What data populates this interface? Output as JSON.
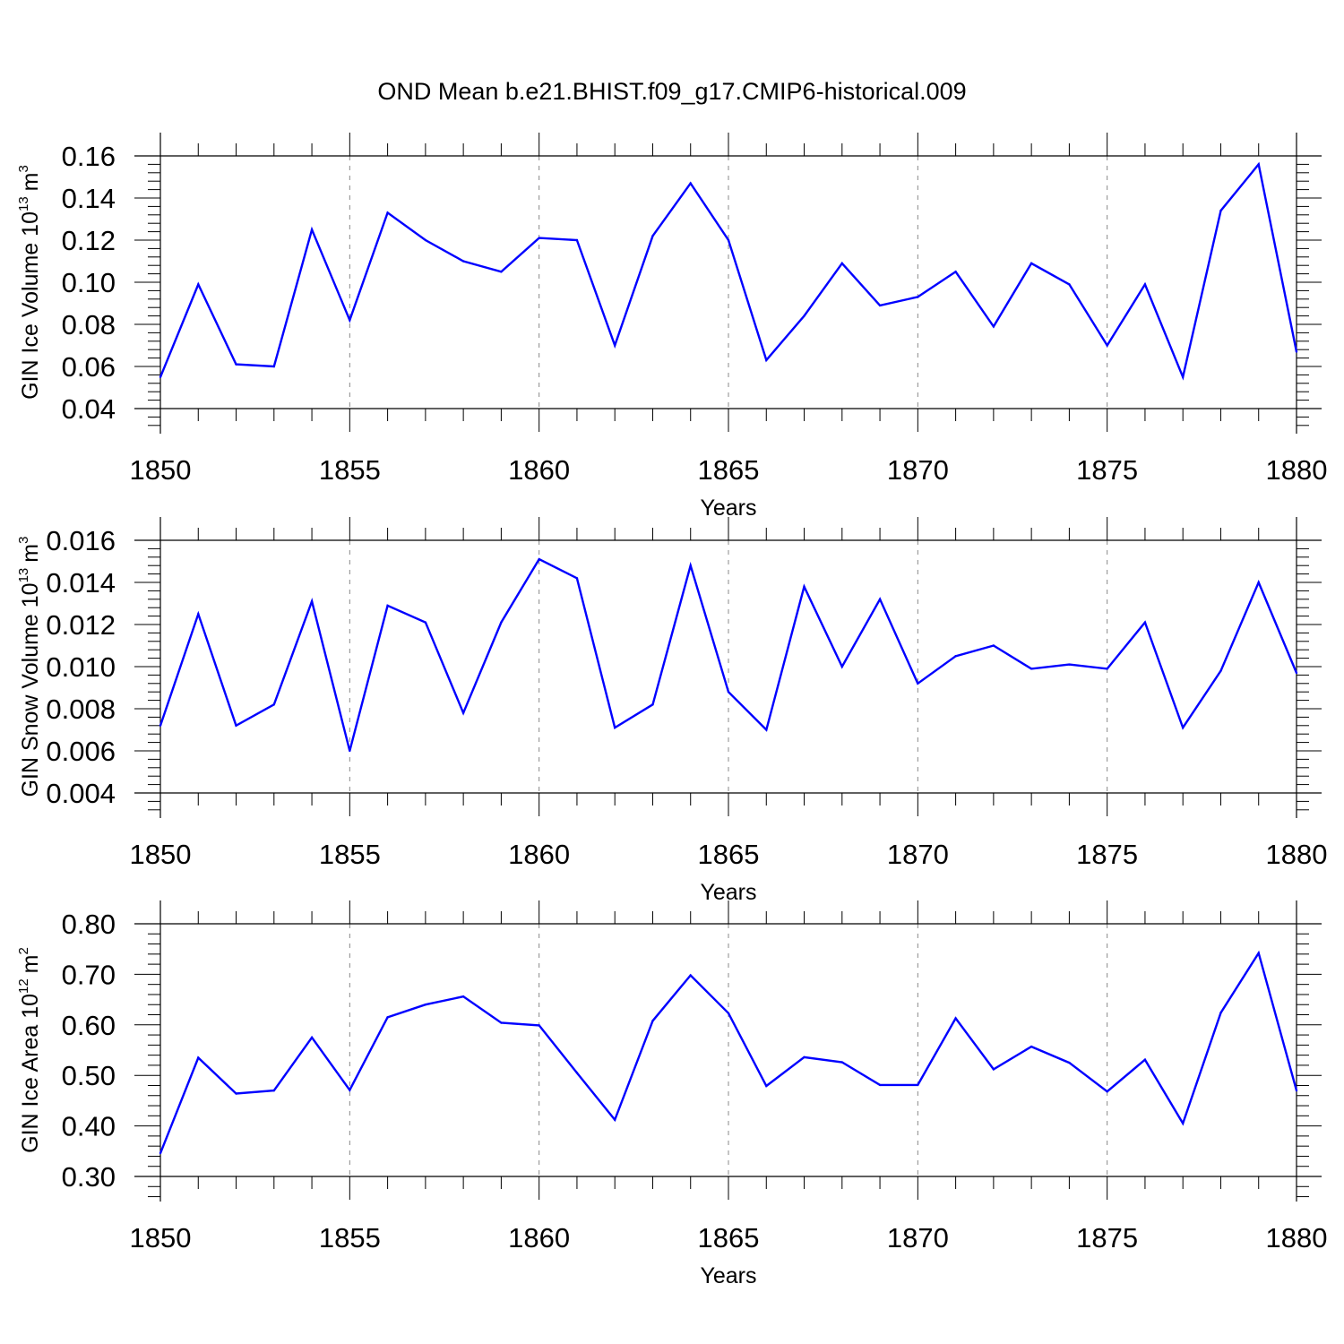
{
  "title": "OND Mean b.e21.BHIST.f09_g17.CMIP6-historical.009",
  "x_axis": {
    "label": "Years",
    "ticks": [
      "1850",
      "1855",
      "1860",
      "1865",
      "1870",
      "1875",
      "1880"
    ]
  },
  "colors": {
    "line": "#0000ff",
    "grid": "#888888",
    "axes": "#000000"
  },
  "panels": [
    {
      "ylabel_main": "GIN Ice Volume 10",
      "ylabel_exp": "13",
      "ylabel_unit": "m",
      "ylabel_unit_exp": "3",
      "yticks": [
        "0.04",
        "0.06",
        "0.08",
        "0.10",
        "0.12",
        "0.14",
        "0.16"
      ]
    },
    {
      "ylabel_main": "GIN Snow Volume 10",
      "ylabel_exp": "13",
      "ylabel_unit": "m",
      "ylabel_unit_exp": "3",
      "yticks": [
        "0.004",
        "0.006",
        "0.008",
        "0.010",
        "0.012",
        "0.014",
        "0.016"
      ]
    },
    {
      "ylabel_main": "GIN Ice Area 10",
      "ylabel_exp": "12",
      "ylabel_unit": "m",
      "ylabel_unit_exp": "2",
      "yticks": [
        "0.30",
        "0.40",
        "0.50",
        "0.60",
        "0.70",
        "0.80"
      ]
    }
  ],
  "chart_data": [
    {
      "type": "line",
      "xlim": [
        1850,
        1880
      ],
      "ylim": [
        0.04,
        0.16
      ],
      "grid": "vertical dashed at major x ticks",
      "x": [
        1850,
        1851,
        1852,
        1853,
        1854,
        1855,
        1856,
        1857,
        1858,
        1859,
        1860,
        1861,
        1862,
        1863,
        1864,
        1865,
        1866,
        1867,
        1868,
        1869,
        1870,
        1871,
        1872,
        1873,
        1874,
        1875,
        1876,
        1877,
        1878,
        1879,
        1880
      ],
      "values": [
        0.055,
        0.099,
        0.061,
        0.06,
        0.125,
        0.082,
        0.133,
        0.12,
        0.11,
        0.105,
        0.121,
        0.12,
        0.07,
        0.122,
        0.147,
        0.12,
        0.063,
        0.084,
        0.109,
        0.089,
        0.093,
        0.105,
        0.079,
        0.109,
        0.099,
        0.07,
        0.099,
        0.055,
        0.134,
        0.156,
        0.067
      ]
    },
    {
      "type": "line",
      "xlim": [
        1850,
        1880
      ],
      "ylim": [
        0.004,
        0.016
      ],
      "grid": "vertical dashed at major x ticks",
      "x": [
        1850,
        1851,
        1852,
        1853,
        1854,
        1855,
        1856,
        1857,
        1858,
        1859,
        1860,
        1861,
        1862,
        1863,
        1864,
        1865,
        1866,
        1867,
        1868,
        1869,
        1870,
        1871,
        1872,
        1873,
        1874,
        1875,
        1876,
        1877,
        1878,
        1879,
        1880
      ],
      "values": [
        0.0072,
        0.0125,
        0.0072,
        0.0082,
        0.0131,
        0.006,
        0.0129,
        0.0121,
        0.0078,
        0.0121,
        0.0151,
        0.0142,
        0.0071,
        0.0082,
        0.0148,
        0.0088,
        0.007,
        0.0138,
        0.01,
        0.0132,
        0.0092,
        0.0105,
        0.011,
        0.0099,
        0.0101,
        0.0099,
        0.0121,
        0.0071,
        0.0098,
        0.014,
        0.0097
      ]
    },
    {
      "type": "line",
      "xlim": [
        1850,
        1880
      ],
      "ylim": [
        0.3,
        0.8
      ],
      "grid": "vertical dashed at major x ticks",
      "x": [
        1850,
        1851,
        1852,
        1853,
        1854,
        1855,
        1856,
        1857,
        1858,
        1859,
        1860,
        1861,
        1862,
        1863,
        1864,
        1865,
        1866,
        1867,
        1868,
        1869,
        1870,
        1871,
        1872,
        1873,
        1874,
        1875,
        1876,
        1877,
        1878,
        1879,
        1880
      ],
      "values": [
        0.346,
        0.535,
        0.464,
        0.47,
        0.575,
        0.471,
        0.615,
        0.64,
        0.656,
        0.604,
        0.599,
        0.505,
        0.412,
        0.608,
        0.698,
        0.623,
        0.479,
        0.536,
        0.526,
        0.481,
        0.481,
        0.613,
        0.512,
        0.557,
        0.525,
        0.468,
        0.531,
        0.405,
        0.624,
        0.742,
        0.47
      ]
    }
  ]
}
